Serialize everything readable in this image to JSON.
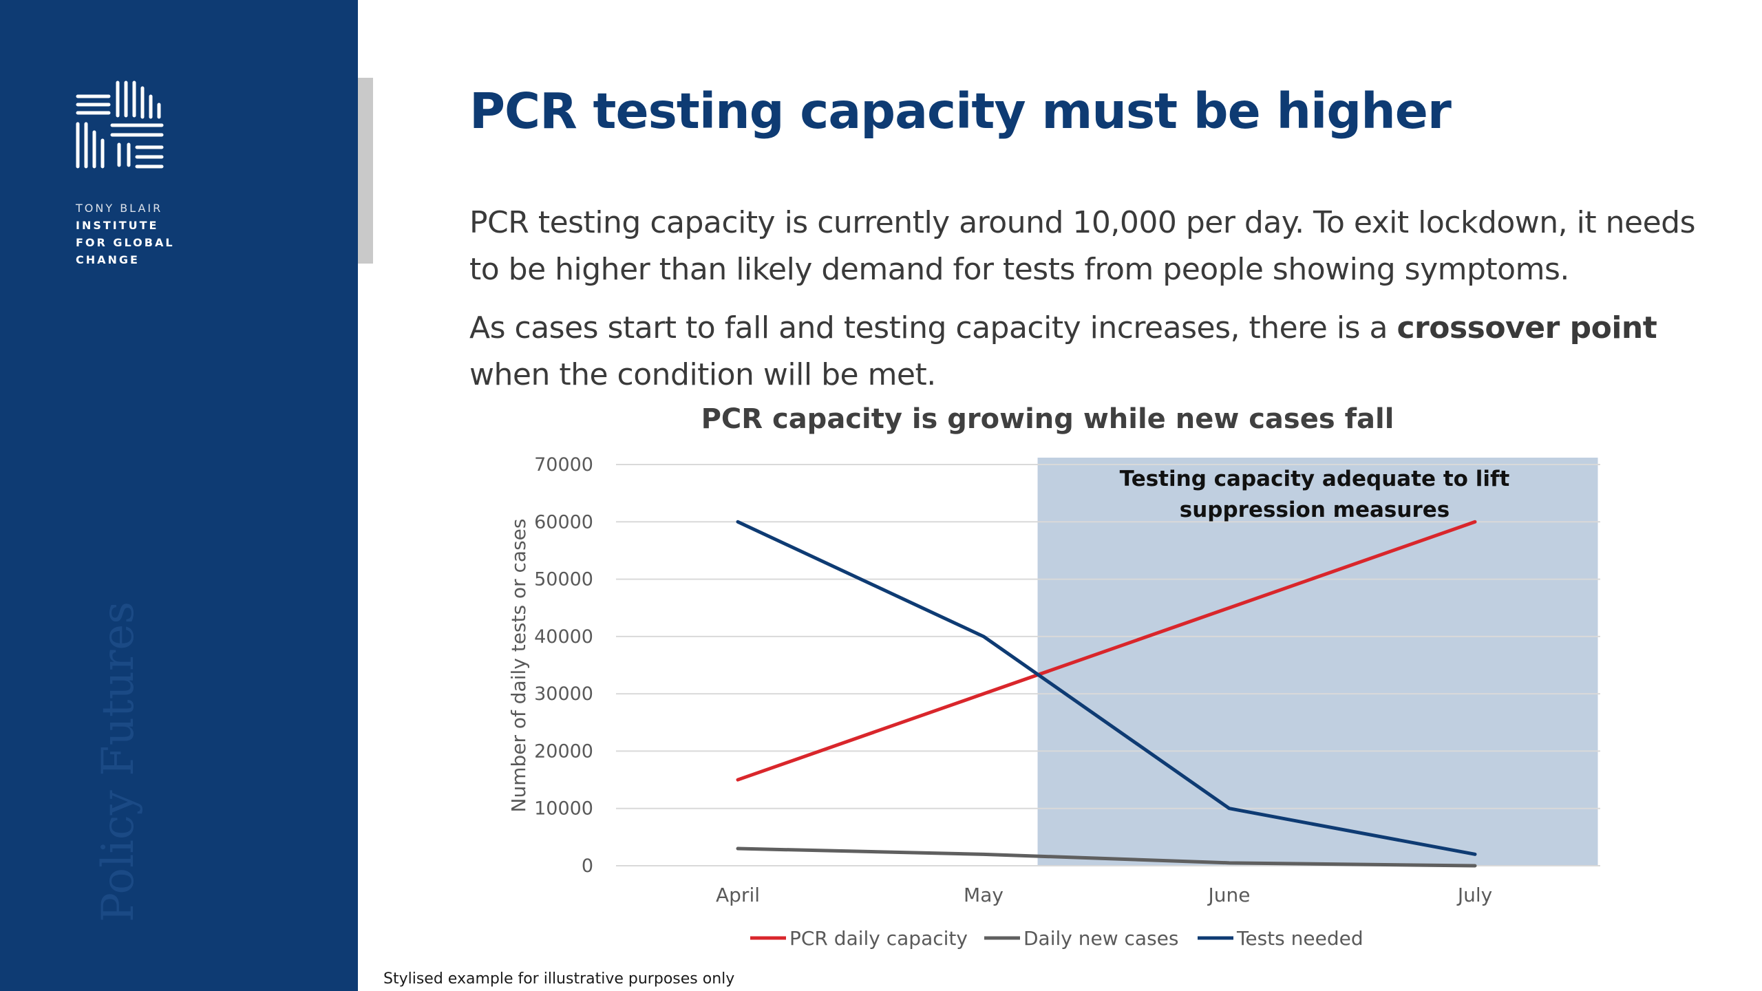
{
  "sidebar": {
    "org_lines": [
      "TONY BLAIR",
      "INSTITUTE",
      "FOR GLOBAL",
      "CHANGE"
    ],
    "watermark": "Policy Futures"
  },
  "slide": {
    "title": "PCR testing capacity must be higher",
    "para1": "PCR testing capacity is currently around 10,000 per day. To exit lockdown, it needs to be higher than likely demand for tests from people showing symptoms.",
    "para2_before": "As cases start to fall and testing capacity increases, there is a ",
    "para2_bold": "crossover point",
    "para2_after": " when the condition will be met.",
    "footnote": "Stylised example for illustrative purposes only"
  },
  "colors": {
    "brand": "#0e3b73",
    "shade": "#c0cfe0",
    "pcr": "#d9262b",
    "cases": "#5f5f5f",
    "tests": "#0e3b73",
    "grid": "#d9d9d9"
  },
  "chart_data": {
    "type": "line",
    "title": "PCR capacity is growing while new cases fall",
    "xlabel": "",
    "ylabel": "Number of daily tests or cases",
    "categories": [
      "April",
      "May",
      "June",
      "July"
    ],
    "ylim": [
      0,
      70000
    ],
    "yticks": [
      0,
      10000,
      20000,
      30000,
      40000,
      50000,
      60000,
      70000
    ],
    "grid": true,
    "legend": "bottom",
    "series": [
      {
        "name": "PCR daily capacity",
        "color": "#d9262b",
        "values": [
          15000,
          30000,
          45000,
          60000
        ]
      },
      {
        "name": "Daily new cases",
        "color": "#5f5f5f",
        "values": [
          3000,
          2000,
          500,
          0
        ]
      },
      {
        "name": "Tests needed",
        "color": "#0e3b73",
        "values": [
          60000,
          40000,
          10000,
          2000
        ]
      }
    ],
    "shaded_region": {
      "from_category_index": 1.22,
      "to_category_index": 3.5,
      "label_lines": [
        "Testing capacity adequate to lift",
        "suppression measures"
      ]
    }
  }
}
